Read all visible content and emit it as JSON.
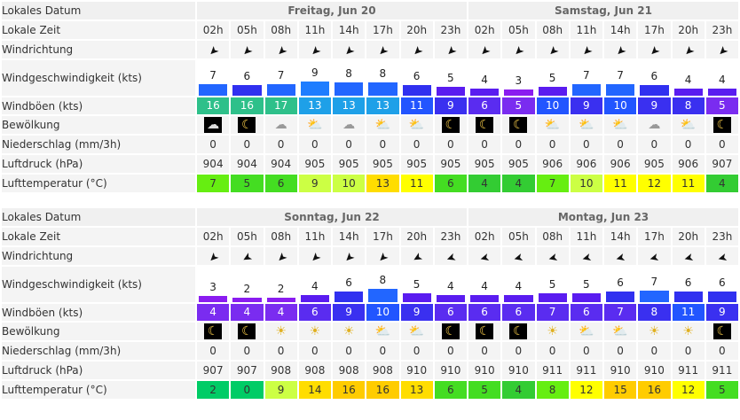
{
  "labels": {
    "date": "Lokales Datum",
    "time": "Lokale Zeit",
    "direction": "Windrichtung",
    "speed": "Windgeschwindigkeit (kts)",
    "gusts": "Windböen (kts)",
    "clouds": "Bewölkung",
    "precip": "Niederschlag (mm/3h)",
    "pressure": "Luftdruck (hPa)",
    "temperature": "Lufttemperatur (°C)"
  },
  "times": [
    "02h",
    "05h",
    "08h",
    "11h",
    "14h",
    "17h",
    "20h",
    "23h"
  ],
  "blocks": [
    {
      "days": [
        "Freitag, Jun 20",
        "Samstag, Jun 21"
      ],
      "direction_deg": [
        135,
        135,
        135,
        135,
        135,
        135,
        135,
        135,
        135,
        135,
        135,
        135,
        135,
        135,
        135,
        135
      ],
      "speed": [
        7,
        6,
        7,
        9,
        8,
        8,
        6,
        5,
        4,
        3,
        5,
        7,
        7,
        6,
        4,
        4
      ],
      "gusts": [
        16,
        16,
        17,
        13,
        13,
        13,
        11,
        9,
        6,
        5,
        10,
        9,
        10,
        9,
        8,
        5
      ],
      "clouds": [
        "overcast-night",
        "partly-cloudy-night",
        "cloudy",
        "partly-cloudy",
        "cloudy",
        "partly-cloudy",
        "partly-sunny",
        "partly-cloudy-night",
        "partly-cloudy-night",
        "partly-cloudy-night",
        "partly-sunny",
        "partly-cloudy",
        "partly-cloudy",
        "cloudy",
        "partly-cloudy",
        "clear-night"
      ],
      "precip": [
        0,
        0,
        0,
        0,
        0,
        0,
        0,
        0,
        0,
        0,
        0,
        0,
        0,
        0,
        0,
        0
      ],
      "pressure": [
        904,
        904,
        904,
        905,
        905,
        905,
        905,
        905,
        905,
        905,
        906,
        906,
        906,
        905,
        906,
        907
      ],
      "temperature": [
        7,
        5,
        6,
        9,
        10,
        13,
        11,
        6,
        4,
        4,
        7,
        10,
        11,
        12,
        11,
        4
      ]
    },
    {
      "days": [
        "Sonntag, Jun 22",
        "Montag, Jun 23"
      ],
      "direction_deg": [
        135,
        150,
        135,
        135,
        135,
        135,
        150,
        160,
        165,
        165,
        165,
        165,
        165,
        165,
        165,
        165
      ],
      "speed": [
        3,
        2,
        2,
        4,
        6,
        8,
        5,
        4,
        4,
        4,
        5,
        5,
        6,
        7,
        6,
        6
      ],
      "gusts": [
        4,
        4,
        4,
        6,
        9,
        10,
        9,
        6,
        6,
        6,
        7,
        6,
        7,
        8,
        11,
        9
      ],
      "clouds": [
        "clear-night",
        "clear-night",
        "sunny",
        "sunny",
        "sunny",
        "partly-cloudy",
        "partly-cloudy",
        "clear-night",
        "clear-night",
        "clear-night",
        "sunny",
        "partly-sunny",
        "partly-sunny",
        "sunny",
        "sunny",
        "clear-night"
      ],
      "precip": [
        0,
        0,
        0,
        0,
        0,
        0,
        0,
        0,
        0,
        0,
        0,
        0,
        0,
        0,
        0,
        0
      ],
      "pressure": [
        907,
        907,
        908,
        908,
        908,
        908,
        910,
        910,
        910,
        910,
        911,
        911,
        910,
        910,
        911,
        911
      ],
      "temperature": [
        2,
        0,
        9,
        14,
        16,
        16,
        13,
        6,
        5,
        4,
        8,
        12,
        15,
        16,
        12,
        5
      ]
    }
  ]
}
